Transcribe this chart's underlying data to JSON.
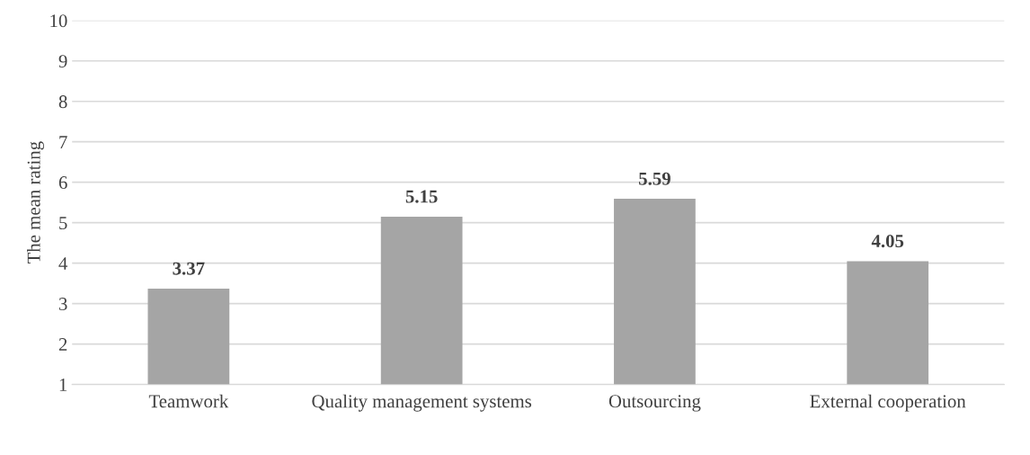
{
  "chart_data": {
    "type": "bar",
    "ylabel": "The mean rating",
    "categories": [
      "Teamwork",
      "Quality management systems",
      "Outsourcing",
      "External cooperation"
    ],
    "values": [
      3.37,
      5.15,
      5.59,
      4.05
    ],
    "color": "#a5a5a5",
    "ylim": [
      1,
      10
    ],
    "yticks": [
      1,
      2,
      3,
      4,
      5,
      6,
      7,
      8,
      9,
      10
    ],
    "grid": "y",
    "data_labels": true
  }
}
